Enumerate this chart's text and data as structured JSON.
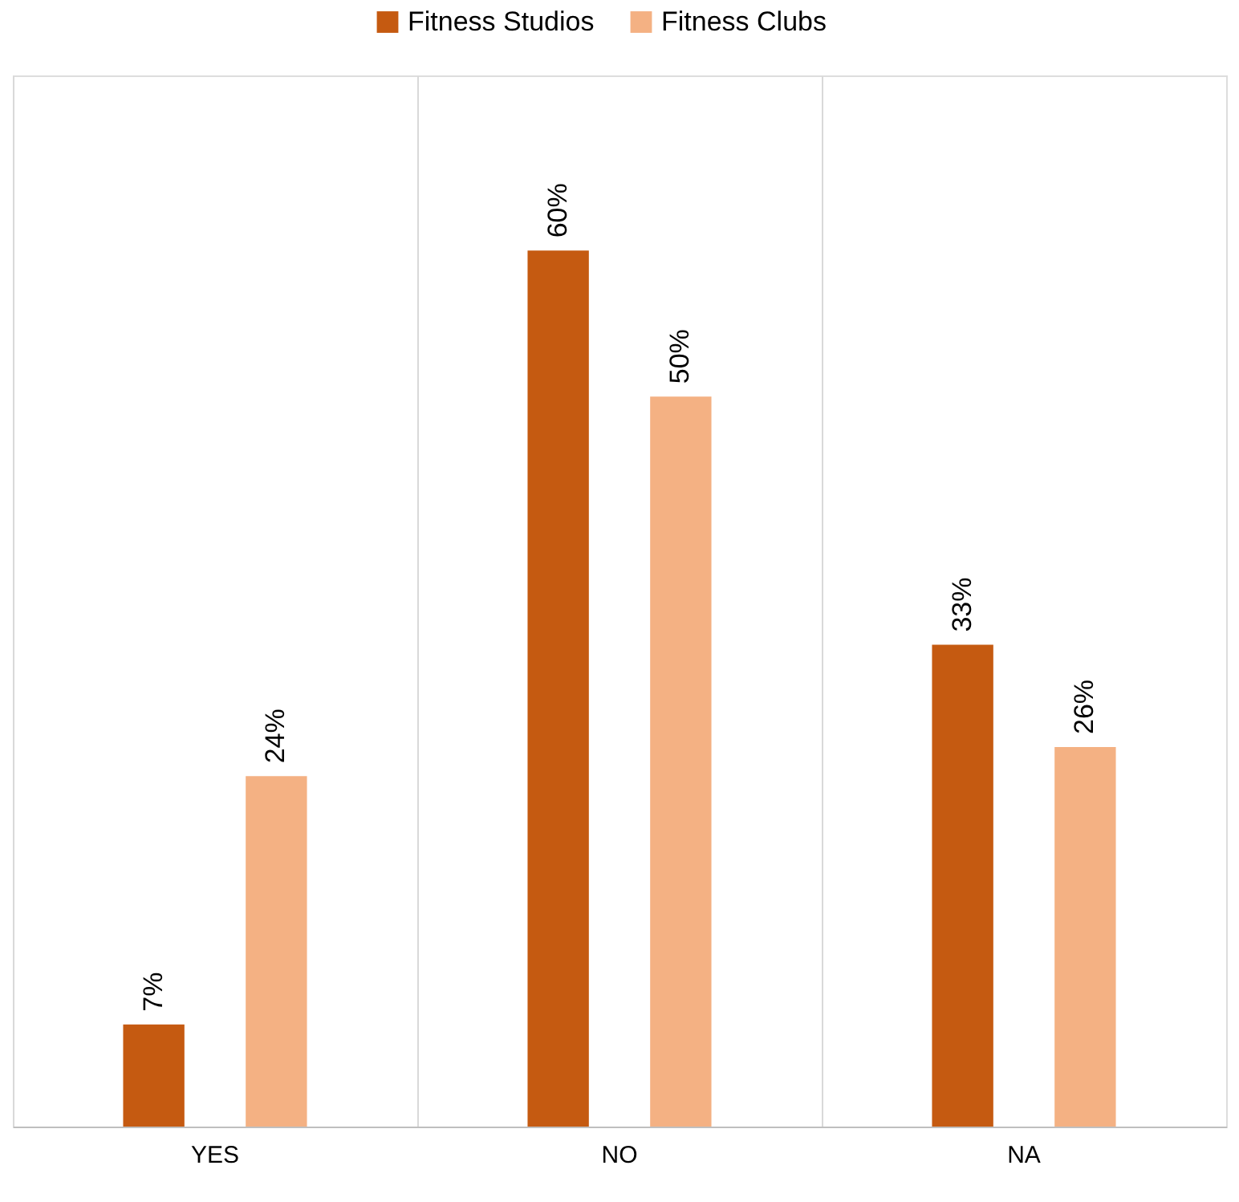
{
  "chart_data": {
    "type": "bar",
    "categories": [
      "YES",
      "NO",
      "NA"
    ],
    "series": [
      {
        "name": "Fitness Studios",
        "color": "#c55a11",
        "values": [
          7,
          60,
          33
        ],
        "value_labels": [
          "7%",
          "60%",
          "33%"
        ]
      },
      {
        "name": "Fitness Clubs",
        "color": "#f4b183",
        "values": [
          24,
          50,
          26
        ],
        "value_labels": [
          "24%",
          "50%",
          "26%"
        ]
      }
    ],
    "grid": "x",
    "legend": "top"
  }
}
